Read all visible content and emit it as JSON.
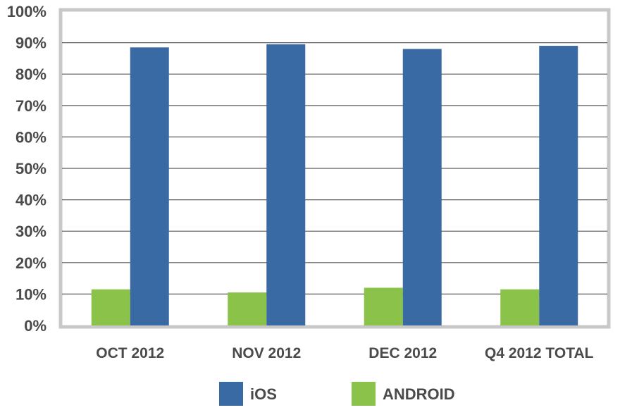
{
  "chart_data": {
    "type": "bar",
    "categories": [
      "OCT 2012",
      "NOV 2012",
      "DEC 2012",
      "Q4 2012 TOTAL"
    ],
    "series": [
      {
        "name": "ANDROID",
        "values": [
          11.5,
          10.5,
          12,
          11.5
        ],
        "color": "#8bc34a"
      },
      {
        "name": "iOS",
        "values": [
          88.5,
          89.5,
          88,
          89
        ],
        "color": "#3a6aa4"
      }
    ],
    "ylim": [
      0,
      100
    ],
    "yticks": [
      "0%",
      "10%",
      "20%",
      "30%",
      "40%",
      "50%",
      "60%",
      "70%",
      "80%",
      "90%",
      "100%"
    ],
    "legend_order": [
      "iOS",
      "ANDROID"
    ],
    "legend_position": "bottom",
    "grid": true,
    "title": "",
    "xlabel": "",
    "ylabel": ""
  },
  "colors": {
    "frame": "#c8c8c8",
    "grid": "#5a5a5a",
    "text": "#4a4a4a"
  }
}
